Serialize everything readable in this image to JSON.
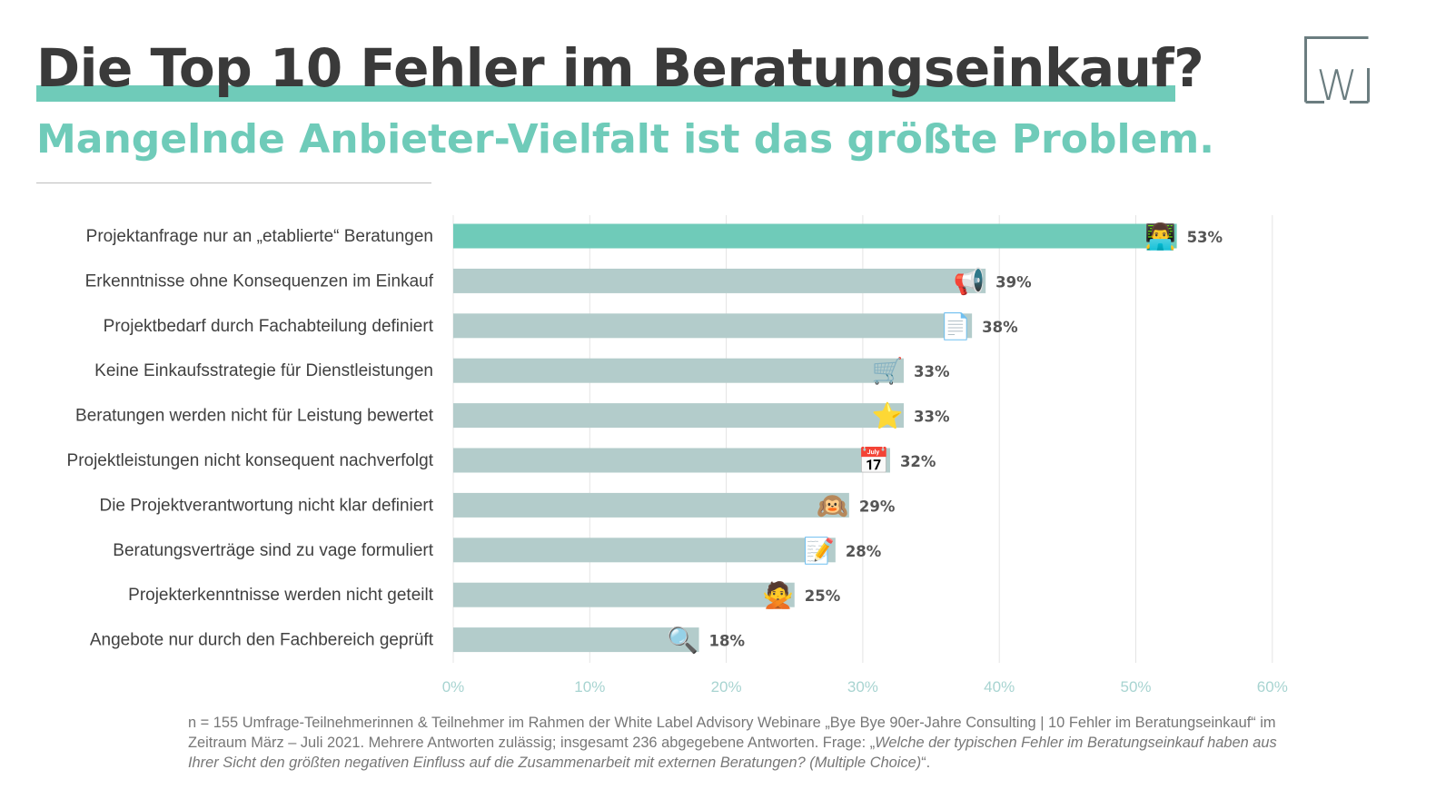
{
  "header": {
    "title": "Die Top 10 Fehler im Beratungseinkauf?",
    "subtitle": "Mangelnde Anbieter-Vielfalt ist das größte Problem."
  },
  "logo": {
    "letter": "W",
    "color": "#6b7d80"
  },
  "colors": {
    "accent": "#6fcbb9",
    "bar": "#b3cccb",
    "title": "#3a3a3a",
    "label": "#404040",
    "tick": "#a8d4d1",
    "value": "#555555"
  },
  "chart_data": {
    "type": "bar",
    "orientation": "horizontal",
    "categories": [
      "Projektanfrage nur an „etablierte“ Beratungen",
      "Erkenntnisse ohne Konsequenzen im Einkauf",
      "Projektbedarf durch Fachabteilung definiert",
      "Keine Einkaufsstrategie für Dienstleistungen",
      "Beratungen werden nicht für Leistung bewertet",
      "Projektleistungen nicht konsequent nachverfolgt",
      "Die Projektverantwortung nicht klar definiert",
      "Beratungsverträge sind zu vage formuliert",
      "Projekterkenntnisse werden nicht geteilt",
      "Angebote nur durch den Fachbereich geprüft"
    ],
    "values": [
      53,
      39,
      38,
      33,
      33,
      32,
      29,
      28,
      25,
      18
    ],
    "value_labels": [
      "53%",
      "39%",
      "38%",
      "33%",
      "33%",
      "32%",
      "29%",
      "28%",
      "25%",
      "18%"
    ],
    "icons": [
      "👨‍💻",
      "📢",
      "📄",
      "🛒",
      "⭐",
      "📅",
      "🙉",
      "📝",
      "🙅",
      "🔍"
    ],
    "icon_names": [
      "technologist-icon",
      "megaphone-icon",
      "document-icon",
      "shopping-cart-icon",
      "star-icon",
      "calendar-icon",
      "hear-no-evil-monkey-icon",
      "memo-icon",
      "no-gesture-icon",
      "magnifier-icon"
    ],
    "highlight_index": 0,
    "x_ticks": [
      0,
      10,
      20,
      30,
      40,
      50,
      60
    ],
    "x_tick_labels": [
      "0%",
      "10%",
      "20%",
      "30%",
      "40%",
      "50%",
      "60%"
    ],
    "xlim": [
      0,
      60
    ],
    "grid": true,
    "title": "",
    "xlabel": "",
    "ylabel": ""
  },
  "footnote": {
    "text": "n = 155 Umfrage-Teilnehmerinnen & Teilnehmer im Rahmen der White Label Advisory Webinare „Bye Bye 90er-Jahre Consulting | 10 Fehler im Beratungseinkauf“ im Zeitraum März – Juli 2021. Mehrere Antworten zulässig; insgesamt 236 abgegebene Antworten. Frage: „",
    "question": "Welche der typischen Fehler im Beratungseinkauf haben aus Ihrer Sicht den größten negativen Einfluss auf die Zusammenarbeit mit externen Beratungen? (Multiple Choice)",
    "closing": "“."
  }
}
